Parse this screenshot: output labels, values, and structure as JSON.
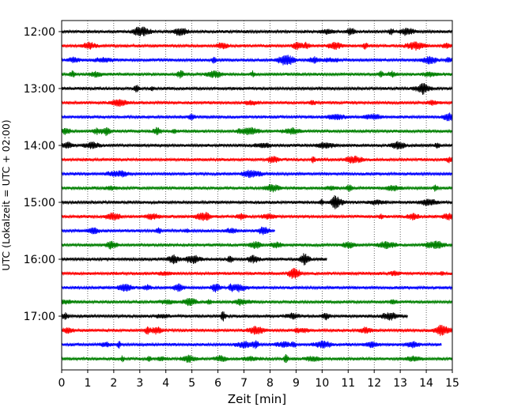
{
  "chart_data": {
    "type": "line",
    "title": "",
    "xlabel": "Zeit  [min]",
    "ylabel": "UTC (Lokalzeit = UTC + 02:00)",
    "xlim": [
      0,
      15
    ],
    "x_ticks": [
      "0",
      "1",
      "2",
      "3",
      "4",
      "5",
      "6",
      "7",
      "8",
      "9",
      "10",
      "11",
      "12",
      "13",
      "14",
      "15"
    ],
    "y_tick_labels": [
      "12:00",
      "13:00",
      "14:00",
      "15:00",
      "16:00",
      "17:00"
    ],
    "grid": "vertical dotted at each minute",
    "trace_colors": [
      "#000000",
      "#ff0000",
      "#0000ff",
      "#008000"
    ],
    "traces": [
      {
        "start": "12:00",
        "end_min": 15
      },
      {
        "start": "12:15",
        "end_min": 15
      },
      {
        "start": "12:30",
        "end_min": 15
      },
      {
        "start": "12:45",
        "end_min": 15
      },
      {
        "start": "13:00",
        "end_min": 15
      },
      {
        "start": "13:15",
        "end_min": 15
      },
      {
        "start": "13:30",
        "end_min": 15
      },
      {
        "start": "13:45",
        "end_min": 15
      },
      {
        "start": "14:00",
        "end_min": 15
      },
      {
        "start": "14:15",
        "end_min": 15
      },
      {
        "start": "14:30",
        "end_min": 15
      },
      {
        "start": "14:45",
        "end_min": 15
      },
      {
        "start": "15:00",
        "end_min": 15
      },
      {
        "start": "15:15",
        "end_min": 15
      },
      {
        "start": "15:30",
        "end_min": 8.2
      },
      {
        "start": "15:45",
        "end_min": 15
      },
      {
        "start": "16:00",
        "end_min": 10.2
      },
      {
        "start": "16:15",
        "end_min": 15
      },
      {
        "start": "16:30",
        "end_min": 15
      },
      {
        "start": "16:45",
        "end_min": 15
      },
      {
        "start": "17:00",
        "end_min": 13.3
      },
      {
        "start": "17:15",
        "end_min": 15
      },
      {
        "start": "17:30",
        "end_min": 14.6
      },
      {
        "start": "17:45",
        "end_min": 15
      }
    ]
  }
}
